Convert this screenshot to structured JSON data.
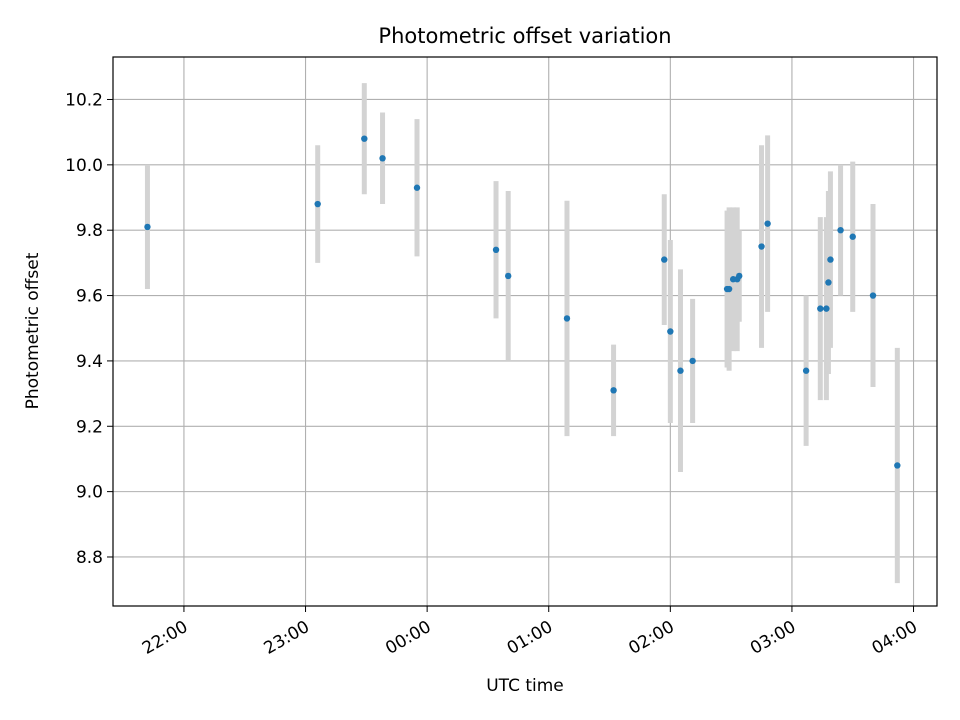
{
  "chart_data": {
    "type": "scatter",
    "title": "Photometric offset variation",
    "xlabel": "UTC time",
    "ylabel": "Photometric offset",
    "x_axis_type": "time",
    "x_ticks": [
      "22:00",
      "23:00",
      "00:00",
      "01:00",
      "02:00",
      "03:00",
      "04:00"
    ],
    "y_ticks": [
      "8.8",
      "9.0",
      "9.2",
      "9.4",
      "9.6",
      "9.8",
      "10.0",
      "10.2"
    ],
    "xlim": [
      "21:25",
      "04:10"
    ],
    "ylim": [
      8.65,
      10.33
    ],
    "grid": true,
    "marker_color": "#1f77b4",
    "errorbar_color": "#d3d3d3",
    "points": [
      {
        "t": "21:42",
        "y": 9.81,
        "err": 0.19
      },
      {
        "t": "23:06",
        "y": 9.88,
        "err": 0.18
      },
      {
        "t": "23:29",
        "y": 10.08,
        "err": 0.17
      },
      {
        "t": "23:38",
        "y": 10.02,
        "err": 0.14
      },
      {
        "t": "23:55",
        "y": 9.93,
        "err": 0.21
      },
      {
        "t": "00:34",
        "y": 9.74,
        "err": 0.21
      },
      {
        "t": "00:40",
        "y": 9.66,
        "err": 0.26
      },
      {
        "t": "01:09",
        "y": 9.53,
        "err": 0.36
      },
      {
        "t": "01:32",
        "y": 9.31,
        "err": 0.14
      },
      {
        "t": "01:57",
        "y": 9.71,
        "err": 0.2
      },
      {
        "t": "02:00",
        "y": 9.49,
        "err": 0.28
      },
      {
        "t": "02:05",
        "y": 9.37,
        "err": 0.31
      },
      {
        "t": "02:11",
        "y": 9.4,
        "err": 0.19
      },
      {
        "t": "02:28",
        "y": 9.62,
        "err": 0.24
      },
      {
        "t": "02:29",
        "y": 9.62,
        "err": 0.25
      },
      {
        "t": "02:31",
        "y": 9.65,
        "err": 0.22
      },
      {
        "t": "02:33",
        "y": 9.65,
        "err": 0.22
      },
      {
        "t": "02:34",
        "y": 9.66,
        "err": 0.14
      },
      {
        "t": "02:45",
        "y": 9.75,
        "err": 0.31
      },
      {
        "t": "02:48",
        "y": 9.82,
        "err": 0.27
      },
      {
        "t": "03:07",
        "y": 9.37,
        "err": 0.23
      },
      {
        "t": "03:14",
        "y": 9.56,
        "err": 0.28
      },
      {
        "t": "03:17",
        "y": 9.56,
        "err": 0.28
      },
      {
        "t": "03:18",
        "y": 9.64,
        "err": 0.28
      },
      {
        "t": "03:19",
        "y": 9.71,
        "err": 0.27
      },
      {
        "t": "03:24",
        "y": 9.8,
        "err": 0.2
      },
      {
        "t": "03:30",
        "y": 9.78,
        "err": 0.23
      },
      {
        "t": "03:40",
        "y": 9.6,
        "err": 0.28
      },
      {
        "t": "03:52",
        "y": 9.08,
        "err": 0.36
      }
    ]
  }
}
